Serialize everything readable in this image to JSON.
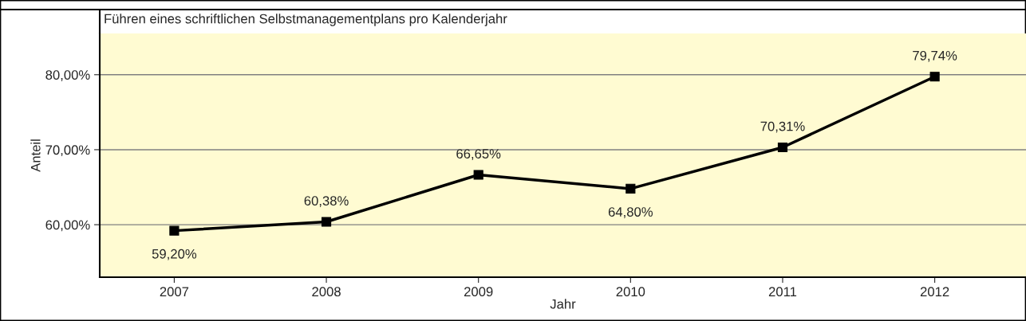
{
  "chart_data": {
    "type": "line",
    "title": "Führen eines schriftlichen Selbstmanagementplans pro Kalenderjahr",
    "xlabel": "Jahr",
    "ylabel": "Anteil",
    "categories": [
      "2007",
      "2008",
      "2009",
      "2010",
      "2011",
      "2012"
    ],
    "series": [
      {
        "color": "#000000",
        "values": [
          59.2,
          60.38,
          66.65,
          64.8,
          70.31,
          79.74
        ],
        "value_labels": [
          "59,20%",
          "60,38%",
          "66,65%",
          "64,80%",
          "70,31%",
          "79,74%"
        ]
      }
    ],
    "ylim": [
      53,
      85.5
    ],
    "yticks": [
      {
        "value": 60,
        "label": "60,00%"
      },
      {
        "value": 70,
        "label": "70,00%"
      },
      {
        "value": 80,
        "label": "80,00%"
      }
    ],
    "grid": "y",
    "marker": "square",
    "line_style": "solid",
    "legend": false
  }
}
